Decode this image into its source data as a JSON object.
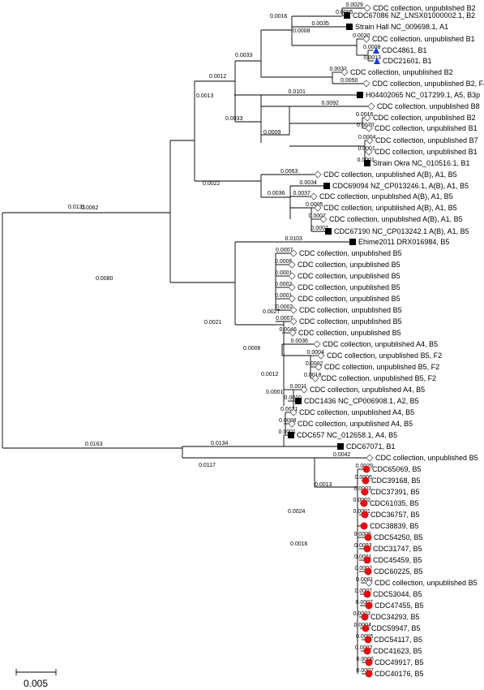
{
  "root_branches": [
    {
      "label": "0.0131"
    },
    {
      "label": "0.0163"
    }
  ],
  "internal_branch_labels": [
    "0.0062",
    "0.0080",
    "0.0012",
    "0.0033",
    "0.0016",
    "0.0008",
    "0.0013",
    "0.0033",
    "0.0009",
    "0.0022",
    "0.0036",
    "0.0021",
    "0.0027",
    "0.0006",
    "0.0012",
    "0.0001",
    "0.0117",
    "0.0013",
    "0.0024",
    "0.0016",
    "0.0134"
  ],
  "taxa": [
    {
      "label": "CDC collection, unpublished  B2",
      "branch": "0.0029",
      "marker": "diamond"
    },
    {
      "label": "CDC67086 NZ_LNSX01000002.1,  B2",
      "branch": "0.0005",
      "marker": "square"
    },
    {
      "label": "Strain Hall NC_009698.1,  A1",
      "branch": "0.0035",
      "marker": "square"
    },
    {
      "label": "CDC collection, unpublished  B1",
      "branch": "0.0020",
      "marker": "diamond"
    },
    {
      "label": "CDC4861, B1",
      "branch": "0.0008",
      "marker": "triangle"
    },
    {
      "label": "CDC21601, B1",
      "branch": "0.0013",
      "marker": "triangle"
    },
    {
      "label": "CDC collection, unpublished  B2",
      "branch": "0.0032",
      "marker": "diamond"
    },
    {
      "label": "CDC collection, unpublished  B2, F4",
      "branch": "0.0050",
      "marker": "diamond"
    },
    {
      "label": "H04402065 NC_017299.1,  A5, B3p",
      "branch": "0.0101",
      "marker": "square"
    },
    {
      "label": "CDC collection, unpublished  B8",
      "branch": "0.0092",
      "marker": "diamond"
    },
    {
      "label": "CDC collection, unpublished  B2",
      "branch": "0.0016",
      "marker": "diamond"
    },
    {
      "label": "CDC collection, unpublished  B1",
      "branch": "0.0020",
      "marker": "diamond"
    },
    {
      "label": "CDC collection, unpublished  B7",
      "branch": "0.0004",
      "marker": "diamond"
    },
    {
      "label": "CDC collection, unpublished  B1",
      "branch": "0.0001",
      "marker": "diamond"
    },
    {
      "label": "Strain Okra NC_010516.1,  B1",
      "branch": "0.0001",
      "marker": "square"
    },
    {
      "label": "CDC collection, unpublished  A(B), A1, B5",
      "branch": "0.0063",
      "marker": "diamond"
    },
    {
      "label": "CDC69094 NZ_CP013246.1,  A(B), A1, B5",
      "branch": "0.0034",
      "marker": "square"
    },
    {
      "label": "CDC collection, unpublished  A(B), A1, B5",
      "branch": "0.0037",
      "marker": "diamond"
    },
    {
      "label": "CDC collection, unpublished  A(B), A1, B5",
      "branch": "0.0005",
      "marker": "diamond"
    },
    {
      "label": "CDC collection, unpublished  A(B), A1, B5",
      "branch": "0.0007",
      "marker": "diamond"
    },
    {
      "label": "CDC67190 NC_CP013242.1  A(B), A1, B5",
      "branch": "0.0002",
      "marker": "square"
    },
    {
      "label": "Ehime2011 DRX016984,  B5",
      "branch": "0.0103",
      "marker": "square"
    },
    {
      "label": "CDC collection, unpublished  B5",
      "branch": "0.0007",
      "marker": "diamond"
    },
    {
      "label": "CDC collection, unpublished  B5",
      "branch": "0.0006",
      "marker": "diamond"
    },
    {
      "label": "CDC collection, unpublished  B5",
      "branch": "0.0001",
      "marker": "diamond"
    },
    {
      "label": "CDC collection, unpublished  B5",
      "branch": "0.0002",
      "marker": "diamond"
    },
    {
      "label": "CDC collection, unpublished  B5",
      "branch": "0.0001",
      "marker": "diamond"
    },
    {
      "label": "CDC collection, unpublished  B5",
      "branch": "0.0002",
      "marker": "diamond"
    },
    {
      "label": "CDC collection, unpublished  B5",
      "branch": "0.0007",
      "marker": "diamond"
    },
    {
      "label": "CDC collection, unpublished  B5",
      "branch": "0.0046",
      "marker": "diamond"
    },
    {
      "label": "CDC collection, unpublished  A4, B5",
      "branch": "0.0036",
      "marker": "diamond"
    },
    {
      "label": "CDC collection, unpublished  B5, F2",
      "branch": "0.0004",
      "marker": "diamond"
    },
    {
      "label": "CDC collection, unpublished  B5, F2",
      "branch": "0.0002",
      "marker": "diamond"
    },
    {
      "label": "CDC collection, unpublished  B5, F2",
      "branch": "0.0018",
      "marker": "diamond"
    },
    {
      "label": "CDC collection, unpublished  A4, B5",
      "branch": "0.0011",
      "marker": "diamond"
    },
    {
      "label": "CDC1436 NC_CP006908.1,  A2, B5",
      "branch": "0.0010",
      "marker": "square"
    },
    {
      "label": "CDC collection, unpublished  A4, B5",
      "branch": "0.0021",
      "marker": "diamond"
    },
    {
      "label": "CDC collection, unpublished  A4, B5",
      "branch": "0.0008",
      "marker": "diamond"
    },
    {
      "label": "CDC657 NC_012658.1,  A4, B5",
      "branch": "0.0001",
      "marker": "square"
    },
    {
      "label": "CDC67071, B1",
      "branch": "",
      "marker": "square"
    },
    {
      "label": "CDC collection, unpublished  B5",
      "branch": "0.0042",
      "marker": "diamond"
    },
    {
      "label": "CDC65069, B5",
      "branch": "0.0029",
      "marker": "circle"
    },
    {
      "label": "CDC39168, B5",
      "branch": "0.0006",
      "marker": "circle"
    },
    {
      "label": "CDC37391, B5",
      "branch": "0.0003",
      "marker": "circle"
    },
    {
      "label": "CDC61035, B5",
      "branch": "0.0002",
      "marker": "circle"
    },
    {
      "label": "CDC36757, B5",
      "branch": "0.0001",
      "marker": "circle"
    },
    {
      "label": "CDC38839, B5",
      "branch": "",
      "marker": "circle"
    },
    {
      "label": "CDC54250, B5",
      "branch": "0.0006",
      "marker": "circle"
    },
    {
      "label": "CDC31747, B5",
      "branch": "0.0003",
      "marker": "circle"
    },
    {
      "label": "CDC45459, B5",
      "branch": "0.0001",
      "marker": "circle"
    },
    {
      "label": "CDC60225, B5",
      "branch": "0.0002",
      "marker": "circle"
    },
    {
      "label": "CDC collection, unpublished  B5",
      "branch": "0.0001",
      "marker": "diamond"
    },
    {
      "label": "CDC53044, B5",
      "branch": "0.0007",
      "marker": "circle"
    },
    {
      "label": "CDC47455, B5",
      "branch": "0.0002",
      "marker": "circle"
    },
    {
      "label": "CDC34293, B5",
      "branch": "0.0003",
      "marker": "circle"
    },
    {
      "label": "CDC59947, B5",
      "branch": "0.0004",
      "marker": "circle"
    },
    {
      "label": "CDC54117, B5",
      "branch": "0.0005",
      "marker": "circle"
    },
    {
      "label": "CDC41623, B5",
      "branch": "0.0002",
      "marker": "circle"
    },
    {
      "label": "CDC49917, B5",
      "branch": "0.0006",
      "marker": "circle"
    },
    {
      "label": "CDC40176, B5",
      "branch": "0.0007",
      "marker": "circle"
    }
  ],
  "scale_bar": {
    "label": "0.005"
  },
  "colors": {
    "line": "#000000",
    "triangle": "#1f3fd0",
    "circle": "#e01010"
  }
}
